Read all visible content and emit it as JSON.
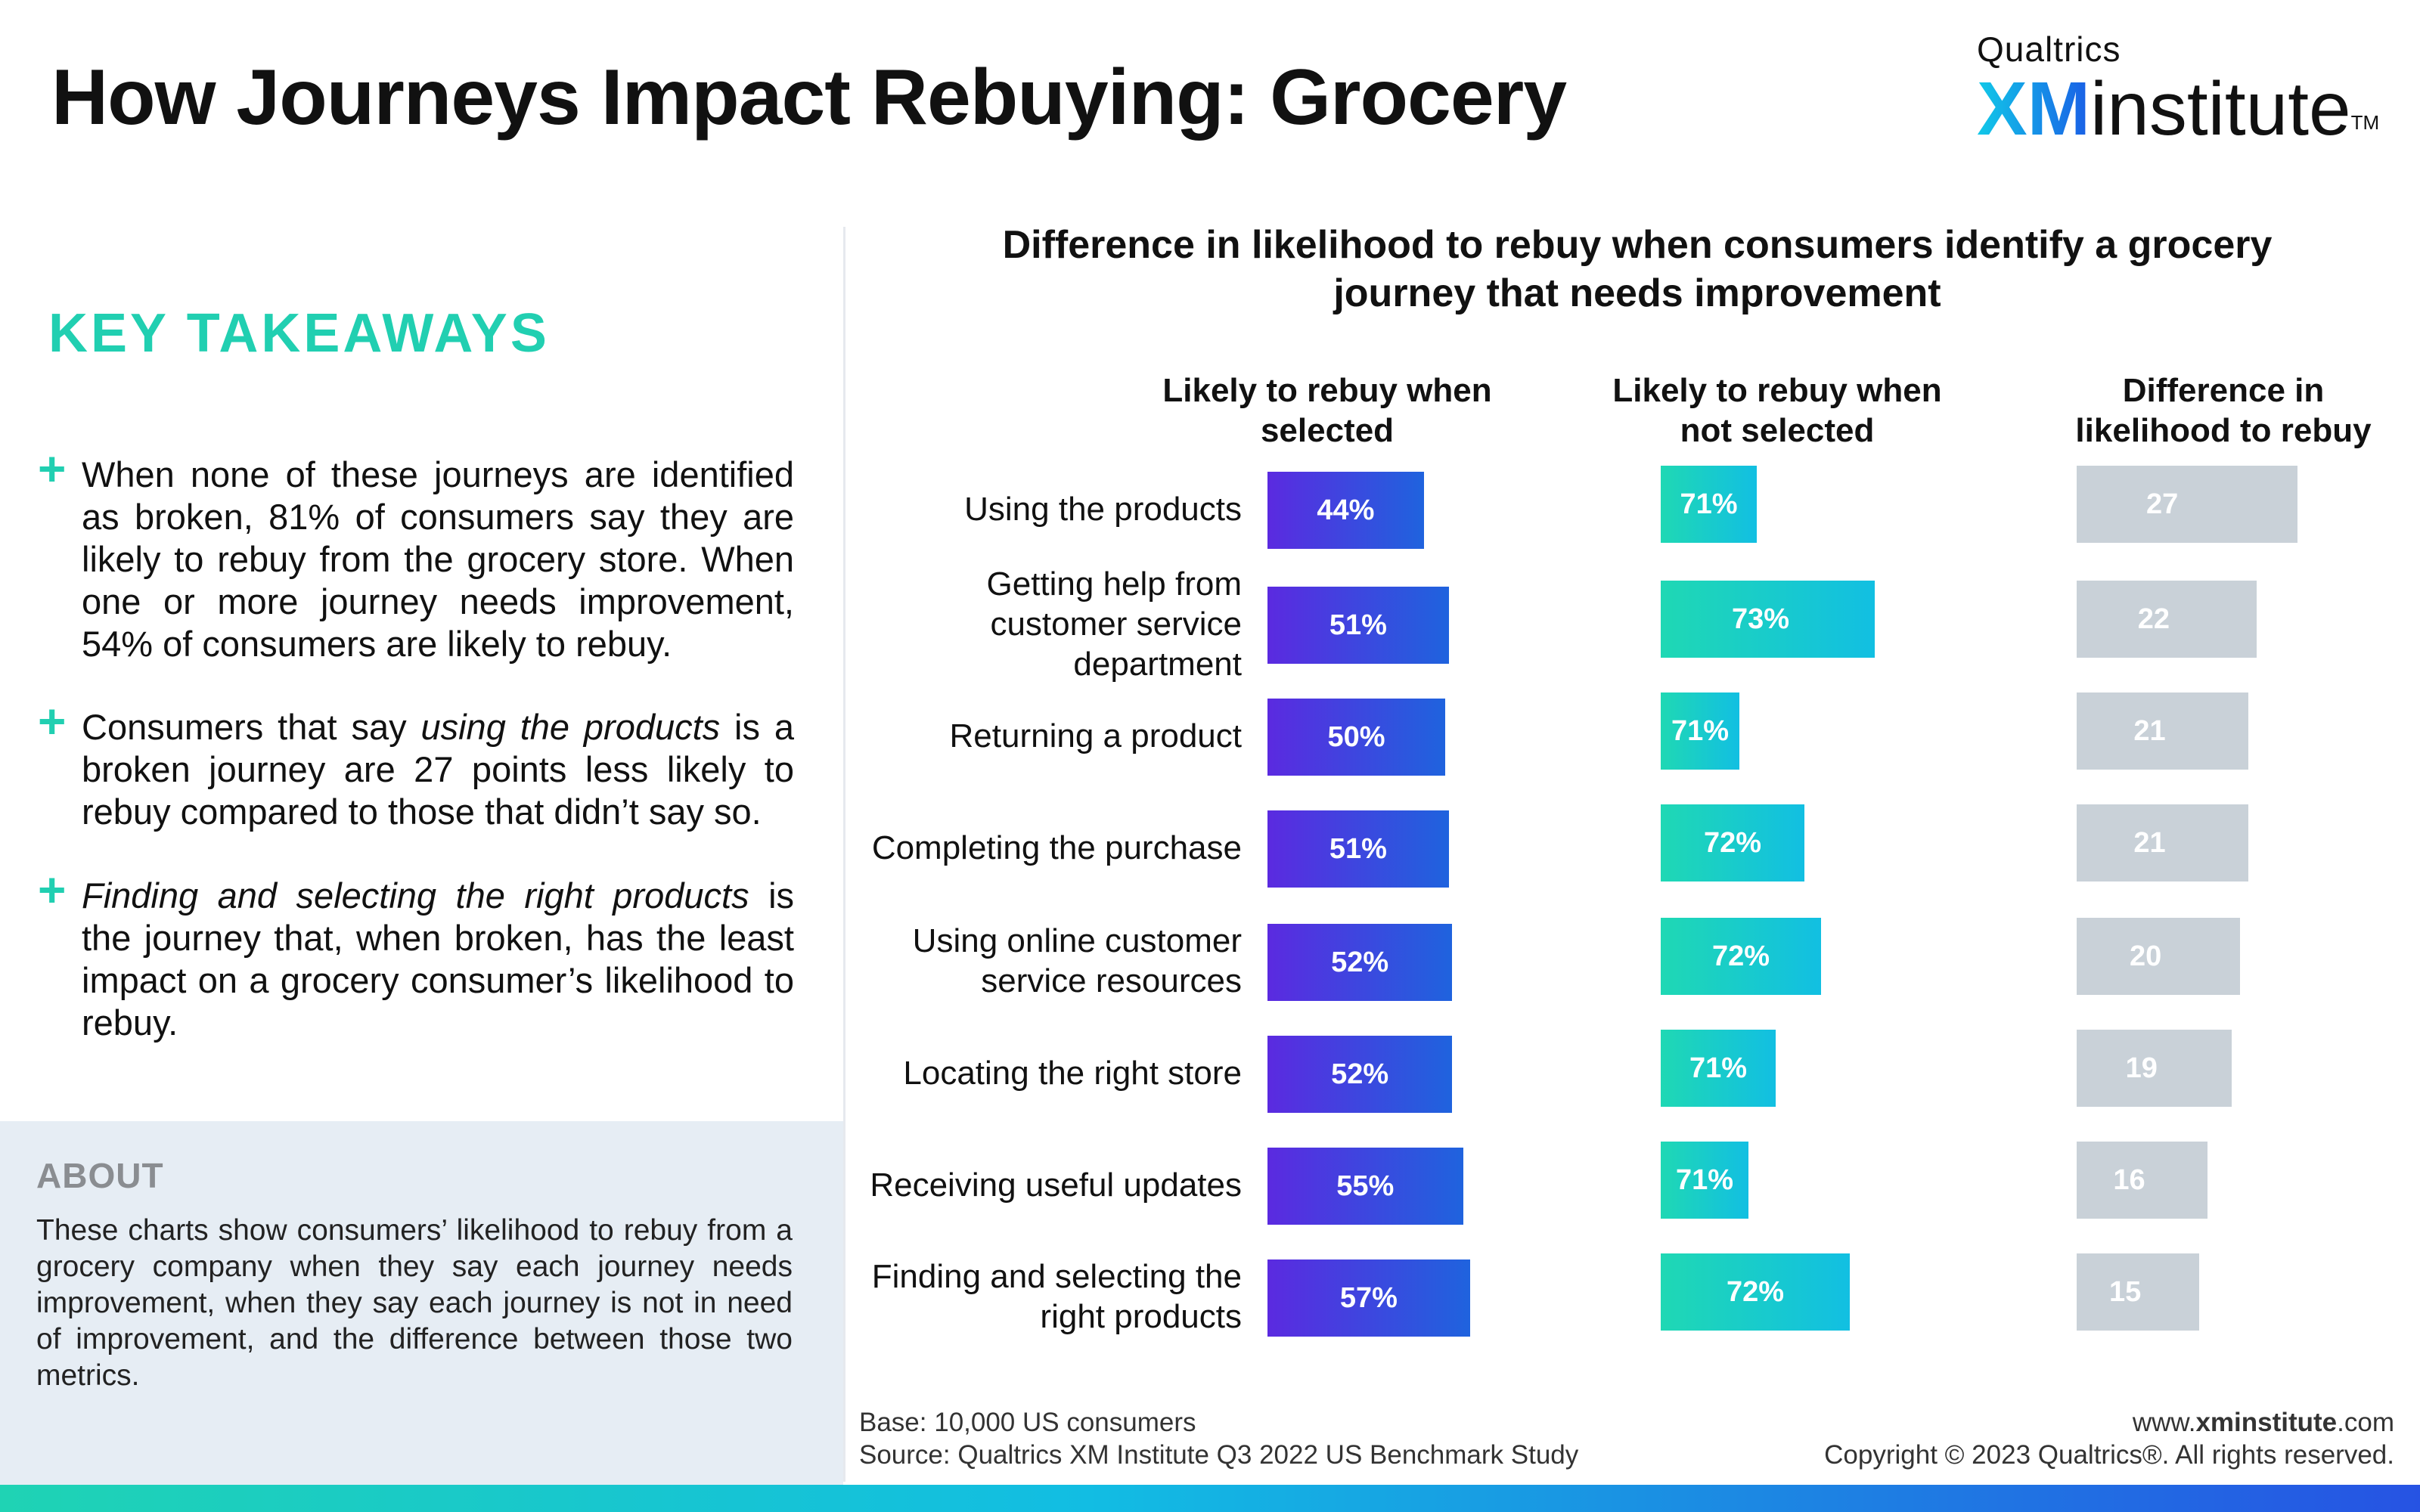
{
  "header": {
    "title": "How Journeys Impact Rebuying: Grocery",
    "brand_small": "Qualtrics",
    "brand_xm": "XM",
    "brand_institute": "institute",
    "brand_tm": "TM"
  },
  "takeaways": {
    "heading": "KEY TAKEAWAYS",
    "items": [
      {
        "pre": "When none of these journeys are identified as broken, 81% of consumers say they are likely to rebuy from the grocery store. When one or more journey needs improvement, 54% of consumers are likely to rebuy.",
        "em": "",
        "post": ""
      },
      {
        "pre": "Consumers that say ",
        "em": "using the products",
        "post": " is a broken journey are 27 points less likely to rebuy compared to those that didn’t say so."
      },
      {
        "pre": "",
        "em": "Finding and selecting the right products",
        "post": " is the journey that, when broken, has the least impact on a grocery consumer’s likelihood to rebuy."
      }
    ]
  },
  "about": {
    "heading": "ABOUT",
    "text": "These charts show consumers’ likelihood to rebuy from a grocery company when they say each journey needs improvement, when they say each journey is not in need of improvement, and the difference between those two metrics."
  },
  "footer": {
    "base": "Base: 10,000 US consumers",
    "source": "Source: Qualtrics XM Institute Q3 2022 US Benchmark Study",
    "url_prefix": "www.",
    "url_bold": "xminstitute",
    "url_suffix": ".com",
    "copyright": "Copyright © 2023 Qualtrics®. All rights reserved."
  },
  "colors": {
    "accent": "#21cfb1",
    "selected_start": "#5b2ae0",
    "selected_end": "#1f63de",
    "not_selected_start": "#1fd8b4",
    "not_selected_end": "#12bfe2",
    "difference": "#c9d1d8"
  },
  "chart_data": {
    "type": "bar",
    "orientation": "horizontal",
    "title_line1": "Difference in likelihood to rebuy when consumers identify a grocery",
    "title_line2": "journey that needs improvement",
    "categories": [
      [
        "Using the products"
      ],
      [
        "Getting help from",
        "customer service",
        "department"
      ],
      [
        "Returning a product"
      ],
      [
        "Completing the purchase"
      ],
      [
        "Using online customer",
        "service resources"
      ],
      [
        "Locating the right store"
      ],
      [
        "Receiving useful updates"
      ],
      [
        "Finding and selecting the",
        "right products"
      ]
    ],
    "series": [
      {
        "name_lines": [
          "Likely to rebuy when",
          "selected"
        ],
        "values": [
          44,
          51,
          50,
          51,
          52,
          52,
          55,
          57
        ],
        "unit": "%"
      },
      {
        "name_lines": [
          "Likely to rebuy when",
          "not selected"
        ],
        "values": [
          71,
          73,
          71,
          72,
          72,
          71,
          71,
          72
        ],
        "unit": "%"
      },
      {
        "name_lines": [
          "Difference in",
          "likelihood to rebuy"
        ],
        "values": [
          27,
          22,
          21,
          21,
          20,
          19,
          16,
          15
        ],
        "unit": ""
      }
    ],
    "grid": false,
    "legend": "column headers"
  }
}
